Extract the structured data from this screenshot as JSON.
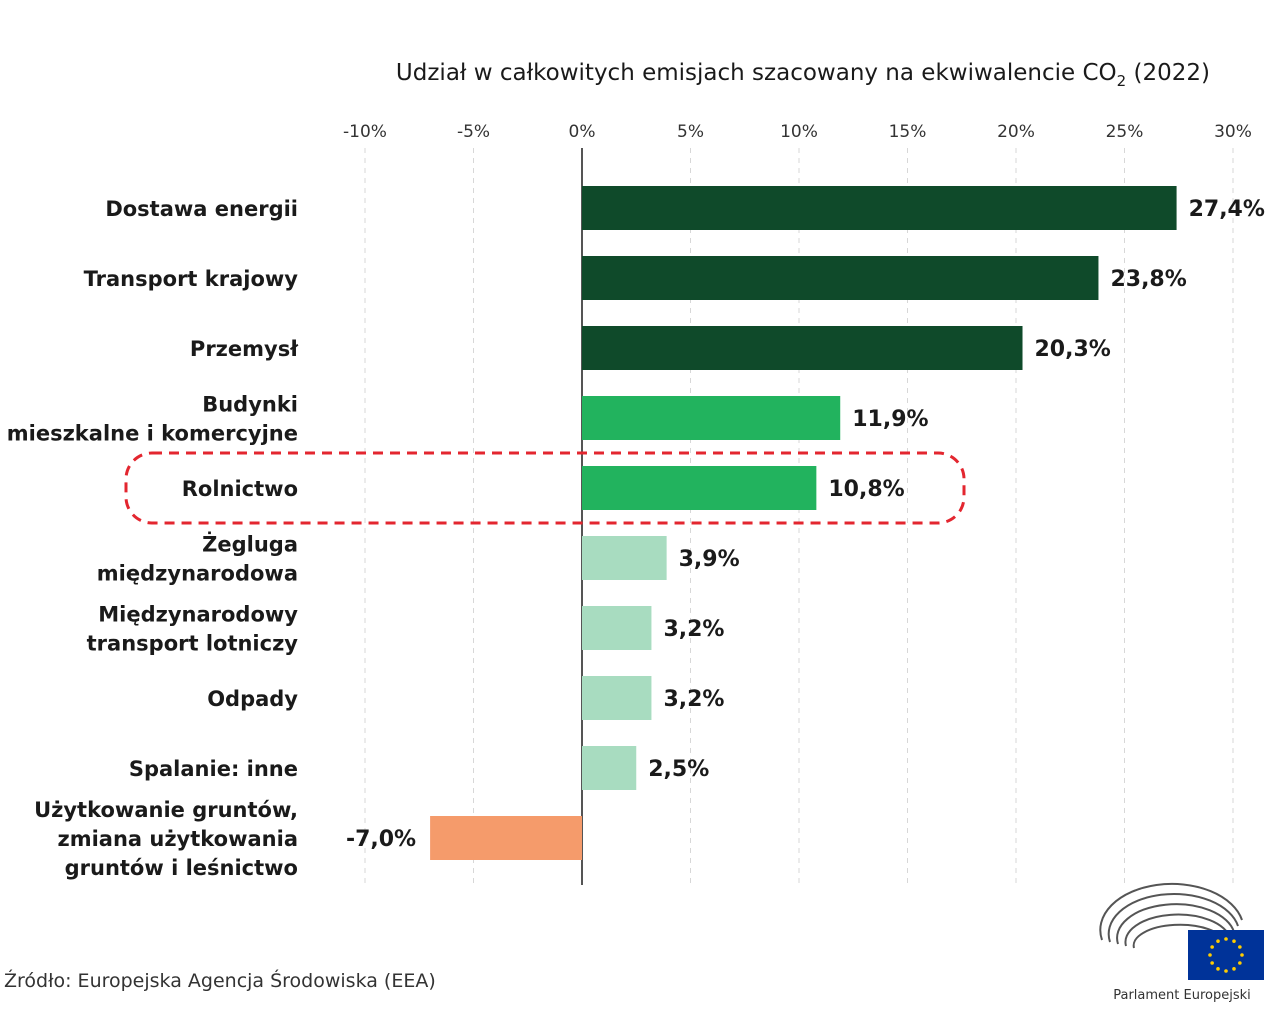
{
  "chart_data": {
    "type": "bar",
    "orientation": "horizontal",
    "title": "Udział w całkowitych emisjach szacowany na ekwiwalencie CO",
    "title_subscript": "2",
    "title_suffix": " (2022)",
    "xlim": [
      -10,
      30
    ],
    "x_ticks": [
      -10,
      -5,
      0,
      5,
      10,
      15,
      20,
      25,
      30
    ],
    "x_tick_labels": [
      "-10%",
      "-5%",
      "0%",
      "5%",
      "10%",
      "15%",
      "20%",
      "25%",
      "30%"
    ],
    "grid": true,
    "categories": [
      {
        "label_lines": [
          "Dostawa energii"
        ],
        "value": 27.4,
        "value_label": "27,4%",
        "color": "#0f4a2a"
      },
      {
        "label_lines": [
          "Transport krajowy"
        ],
        "value": 23.8,
        "value_label": "23,8%",
        "color": "#0f4a2a"
      },
      {
        "label_lines": [
          "Przemysł"
        ],
        "value": 20.3,
        "value_label": "20,3%",
        "color": "#0f4a2a"
      },
      {
        "label_lines": [
          "Budynki",
          "mieszkalne i komercyjne"
        ],
        "value": 11.9,
        "value_label": "11,9%",
        "color": "#22b35e"
      },
      {
        "label_lines": [
          "Rolnictwo"
        ],
        "value": 10.8,
        "value_label": "10,8%",
        "color": "#22b35e",
        "highlighted": true
      },
      {
        "label_lines": [
          "Żegluga",
          "międzynarodowa"
        ],
        "value": 3.9,
        "value_label": "3,9%",
        "color": "#a8dcc0"
      },
      {
        "label_lines": [
          "Międzynarodowy",
          "transport lotniczy"
        ],
        "value": 3.2,
        "value_label": "3,2%",
        "color": "#a8dcc0"
      },
      {
        "label_lines": [
          "Odpady"
        ],
        "value": 3.2,
        "value_label": "3,2%",
        "color": "#a8dcc0"
      },
      {
        "label_lines": [
          "Spalanie: inne"
        ],
        "value": 2.5,
        "value_label": "2,5%",
        "color": "#a8dcc0"
      },
      {
        "label_lines": [
          "Użytkowanie gruntów,",
          "zmiana użytkowania",
          "gruntów i leśnictwo"
        ],
        "value": -7.0,
        "value_label": "-7,0%",
        "color": "#f59b6b"
      }
    ],
    "highlight_color": "#e3262f"
  },
  "source_text": "Źródło: Europejska Agencja Środowiska (EEA)",
  "logo": {
    "text": "Parlament Europejski",
    "icon": "eu-parliament-icon",
    "flag_color": "#003399",
    "star_color": "#ffcc00"
  }
}
